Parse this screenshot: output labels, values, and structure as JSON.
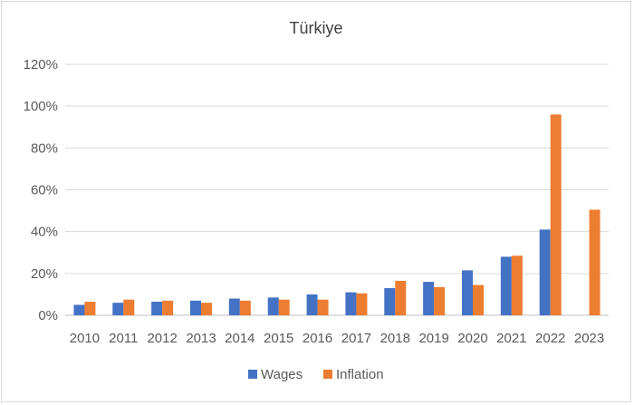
{
  "chart_data": {
    "type": "bar",
    "title": "Türkiye",
    "categories": [
      "2010",
      "2011",
      "2012",
      "2013",
      "2014",
      "2015",
      "2016",
      "2017",
      "2018",
      "2019",
      "2020",
      "2021",
      "2022",
      "2023"
    ],
    "series": [
      {
        "name": "Wages",
        "color": "#4472c4",
        "values": [
          5,
          6,
          6.5,
          7,
          8,
          8.5,
          10,
          11,
          13,
          16,
          21.5,
          28,
          41,
          null
        ]
      },
      {
        "name": "Inflation",
        "color": "#ed7d31",
        "values": [
          6.5,
          7.5,
          7,
          6,
          7,
          7.5,
          7.5,
          10.5,
          16.5,
          13.5,
          14.5,
          28.5,
          96,
          50.5
        ]
      }
    ],
    "ylim": [
      0,
      120
    ],
    "yticks": [
      0,
      20,
      40,
      60,
      80,
      100,
      120
    ],
    "ytick_labels": [
      "0%",
      "20%",
      "40%",
      "60%",
      "80%",
      "100%",
      "120%"
    ],
    "xlabel": "",
    "ylabel": "",
    "grid": true,
    "legend_position": "bottom"
  }
}
